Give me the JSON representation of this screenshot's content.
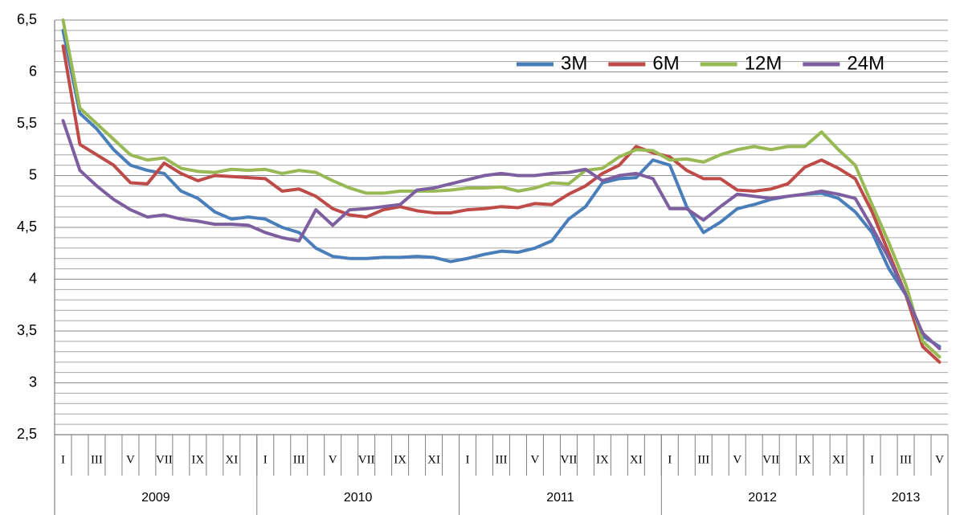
{
  "chart_data": {
    "type": "line",
    "categories": [
      "I",
      null,
      "III",
      null,
      "V",
      null,
      "VII",
      null,
      "IX",
      null,
      "XI",
      null,
      "I",
      null,
      "III",
      null,
      "V",
      null,
      "VII",
      null,
      "IX",
      null,
      "XI",
      null,
      "I",
      null,
      "III",
      null,
      "V",
      null,
      "VII",
      null,
      "IX",
      null,
      "XI",
      null,
      "I",
      null,
      "III",
      null,
      "V",
      null,
      "VII",
      null,
      "IX",
      null,
      "XI",
      null,
      "I",
      null,
      "III",
      null,
      "V"
    ],
    "years": [
      "2009",
      "2010",
      "2011",
      "2012",
      "2013"
    ],
    "series": [
      {
        "name": "3M",
        "color": "#4a7ebb",
        "values": [
          6.4,
          5.6,
          5.45,
          5.25,
          5.1,
          5.05,
          5.02,
          4.85,
          4.78,
          4.65,
          4.58,
          4.6,
          4.58,
          4.5,
          4.45,
          4.3,
          4.22,
          4.2,
          4.2,
          4.21,
          4.21,
          4.22,
          4.21,
          4.17,
          4.2,
          4.24,
          4.27,
          4.26,
          4.3,
          4.37,
          4.58,
          4.7,
          4.93,
          4.97,
          4.98,
          5.15,
          5.1,
          4.7,
          4.45,
          4.55,
          4.68,
          4.72,
          4.77,
          4.8,
          4.82,
          4.83,
          4.78,
          4.65,
          4.45,
          4.1,
          3.85,
          3.45,
          3.35
        ]
      },
      {
        "name": "6M",
        "color": "#be4b48",
        "values": [
          6.25,
          5.3,
          5.2,
          5.1,
          4.93,
          4.92,
          5.12,
          5.02,
          4.95,
          5.0,
          4.99,
          4.98,
          4.97,
          4.85,
          4.87,
          4.8,
          4.68,
          4.62,
          4.6,
          4.67,
          4.7,
          4.66,
          4.64,
          4.64,
          4.67,
          4.68,
          4.7,
          4.69,
          4.73,
          4.72,
          4.82,
          4.9,
          5.02,
          5.1,
          5.28,
          5.22,
          5.18,
          5.05,
          4.97,
          4.97,
          4.86,
          4.85,
          4.87,
          4.92,
          5.08,
          5.15,
          5.07,
          4.97,
          4.65,
          4.25,
          3.85,
          3.35,
          3.2
        ]
      },
      {
        "name": "12M",
        "color": "#98b954",
        "values": [
          6.5,
          5.65,
          5.5,
          5.35,
          5.2,
          5.15,
          5.17,
          5.07,
          5.04,
          5.03,
          5.06,
          5.05,
          5.06,
          5.02,
          5.05,
          5.03,
          4.95,
          4.88,
          4.83,
          4.83,
          4.85,
          4.85,
          4.85,
          4.86,
          4.88,
          4.88,
          4.89,
          4.85,
          4.88,
          4.93,
          4.92,
          5.05,
          5.07,
          5.18,
          5.25,
          5.24,
          5.15,
          5.16,
          5.13,
          5.2,
          5.25,
          5.28,
          5.25,
          5.28,
          5.28,
          5.42,
          5.25,
          5.1,
          4.72,
          4.35,
          3.95,
          3.4,
          3.25
        ]
      },
      {
        "name": "24M",
        "color": "#7d5fa0",
        "values": [
          5.53,
          5.05,
          4.9,
          4.77,
          4.67,
          4.6,
          4.62,
          4.58,
          4.56,
          4.53,
          4.53,
          4.52,
          4.45,
          4.4,
          4.37,
          4.67,
          4.52,
          4.67,
          4.68,
          4.7,
          4.72,
          4.86,
          4.88,
          4.92,
          4.96,
          5.0,
          5.02,
          5.0,
          5.0,
          5.02,
          5.03,
          5.06,
          4.95,
          5.0,
          5.02,
          4.97,
          4.68,
          4.68,
          4.57,
          4.7,
          4.82,
          4.8,
          4.78,
          4.8,
          4.82,
          4.85,
          4.82,
          4.78,
          4.5,
          4.2,
          3.85,
          3.48,
          3.33
        ]
      }
    ],
    "ylim": [
      2.5,
      6.5
    ],
    "yticks": [
      {
        "value": 2.5,
        "label": "2,5"
      },
      3,
      {
        "value": 3.5,
        "label": "3,5"
      },
      4,
      {
        "value": 4.5,
        "label": "4,5"
      },
      5,
      {
        "value": 5.5,
        "label": "5,5"
      },
      6,
      {
        "value": 6.5,
        "label": "6,5"
      }
    ],
    "minor_yticks": [
      2.6,
      2.7,
      2.8,
      2.9,
      3.1,
      3.2,
      3.3,
      3.4,
      3.6,
      3.7,
      3.8,
      3.9,
      4.1,
      4.2,
      4.3,
      4.4,
      4.6,
      4.7,
      4.8,
      4.9,
      5.1,
      5.2,
      5.3,
      5.4,
      5.6,
      5.7,
      5.8,
      5.9,
      6.1,
      6.2,
      6.3,
      6.4
    ],
    "grid": true,
    "legend": "top-right"
  }
}
